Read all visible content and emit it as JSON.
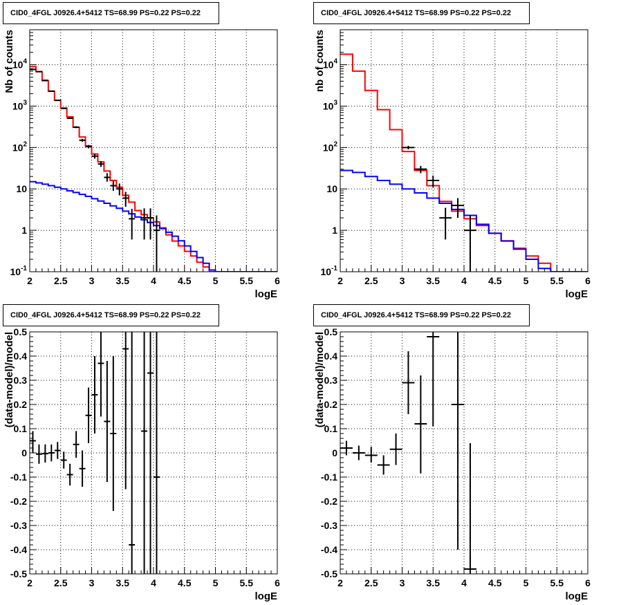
{
  "chart_data": [
    {
      "type": "line",
      "title": "CID0_4FGL J0926.4+5412 TS=68.99 PS=0.22 PS=0.22",
      "xlabel": "logE",
      "ylabel": "Nb of counts",
      "xlim": [
        2,
        6
      ],
      "ylim": [
        0.1,
        70000
      ],
      "yscale": "log",
      "grid": true,
      "xticks": [
        "2",
        "2.5",
        "3",
        "3.5",
        "4",
        "4.5",
        "5",
        "5.5",
        "6"
      ],
      "yticks": [
        "10^-1",
        "1",
        "10",
        "10^2",
        "10^3",
        "10^4"
      ],
      "bin_edges": [
        2,
        2.1,
        2.2,
        2.3,
        2.4,
        2.5,
        2.6,
        2.7,
        2.8,
        2.9,
        3,
        3.1,
        3.2,
        3.3,
        3.4,
        3.5,
        3.6,
        3.7,
        3.8,
        3.9,
        4,
        4.1,
        4.2,
        4.3,
        4.4,
        4.5,
        4.6,
        4.7,
        4.8,
        4.9,
        5,
        5.1,
        5.2,
        5.3,
        5.4,
        5.5,
        5.6,
        5.7,
        5.8,
        5.9,
        6
      ],
      "series": [
        {
          "color": "#ff0000",
          "style": "step",
          "values": [
            9000,
            6800,
            4100,
            2300,
            1380,
            900,
            550,
            310,
            180,
            110,
            70,
            45,
            27,
            16,
            11,
            7,
            4.8,
            3,
            2.4,
            2,
            1.6,
            1.15,
            0.78,
            0.55,
            0.42,
            0.31,
            0.24,
            0.17,
            0.13,
            0.1,
            0.08,
            0.07,
            0.06,
            0.06,
            0.06,
            0.06,
            0.06,
            0.06,
            0.06,
            0.06
          ]
        },
        {
          "color": "#0000ff",
          "style": "step",
          "values": [
            15,
            14,
            13,
            12,
            11,
            10,
            9,
            8.2,
            7.4,
            6.6,
            5.8,
            5.1,
            4.5,
            3.9,
            3.4,
            2.9,
            2.5,
            2.1,
            1.8,
            1.55,
            1.3,
            1.1,
            0.9,
            0.72,
            0.56,
            0.42,
            0.31,
            0.22,
            0.16,
            0.11,
            0.1,
            0.1,
            0.1,
            0.1,
            0.1,
            0.1,
            0.1,
            0.1,
            0.1,
            0.1
          ]
        },
        {
          "color": "#000000",
          "style": "errorbar",
          "points": [
            {
              "x": 2.05,
              "y": 7700,
              "lo": 7600,
              "hi": 7800
            },
            {
              "x": 2.15,
              "y": 6800,
              "lo": 6700,
              "hi": 6900
            },
            {
              "x": 2.25,
              "y": 4200,
              "lo": 4130,
              "hi": 4270
            },
            {
              "x": 2.35,
              "y": 2300,
              "lo": 2250,
              "hi": 2350
            },
            {
              "x": 2.45,
              "y": 1380,
              "lo": 1340,
              "hi": 1420
            },
            {
              "x": 2.55,
              "y": 880,
              "lo": 850,
              "hi": 910
            },
            {
              "x": 2.65,
              "y": 510,
              "lo": 490,
              "hi": 530
            },
            {
              "x": 2.75,
              "y": 310,
              "lo": 293,
              "hi": 327
            },
            {
              "x": 2.85,
              "y": 150,
              "lo": 138,
              "hi": 162
            },
            {
              "x": 2.95,
              "y": 105,
              "lo": 95,
              "hi": 115
            },
            {
              "x": 3.05,
              "y": 62,
              "lo": 54,
              "hi": 70
            },
            {
              "x": 3.15,
              "y": 40,
              "lo": 34,
              "hi": 47
            },
            {
              "x": 3.25,
              "y": 19,
              "lo": 15,
              "hi": 24
            },
            {
              "x": 3.35,
              "y": 12,
              "lo": 9,
              "hi": 15.5
            },
            {
              "x": 3.45,
              "y": 10,
              "lo": 7,
              "hi": 13.5
            },
            {
              "x": 3.55,
              "y": 6,
              "lo": 3.7,
              "hi": 8.5
            },
            {
              "x": 3.65,
              "y": 1.9,
              "lo": 0.6,
              "hi": 3.3
            },
            {
              "x": 3.85,
              "y": 2,
              "lo": 0.6,
              "hi": 3.4
            },
            {
              "x": 3.95,
              "y": 2,
              "lo": 0.6,
              "hi": 3.4
            },
            {
              "x": 4.05,
              "y": 1,
              "lo": 0.1,
              "hi": 2.3
            }
          ]
        }
      ]
    },
    {
      "type": "line",
      "title": "CID0_4FGL J0926.4+5412 TS=68.99 PS=0.22 PS=0.22",
      "xlabel": "logE",
      "ylabel": "nb of counts",
      "xlim": [
        2,
        6
      ],
      "ylim": [
        0.1,
        70000
      ],
      "yscale": "log",
      "grid": true,
      "xticks": [
        "2",
        "2.5",
        "3",
        "3.5",
        "4",
        "4.5",
        "5",
        "5.5",
        "6"
      ],
      "yticks": [
        "10^-1",
        "1",
        "10",
        "10^2",
        "10^3",
        "10^4"
      ],
      "bin_edges": [
        2,
        2.2,
        2.4,
        2.6,
        2.8,
        3,
        3.2,
        3.4,
        3.6,
        3.8,
        4,
        4.2,
        4.4,
        4.6,
        4.8,
        5,
        5.2,
        5.4,
        5.6,
        5.8,
        6
      ],
      "series": [
        {
          "color": "#ff0000",
          "style": "step",
          "values": [
            18000,
            7000,
            2400,
            820,
            270,
            80,
            28,
            12,
            5,
            2.9,
            1.9,
            1.3,
            0.85,
            0.56,
            0.37,
            0.24,
            0.16,
            0.1,
            0.1,
            0.1
          ]
        },
        {
          "color": "#0000ff",
          "style": "step",
          "values": [
            28,
            25,
            20,
            16,
            13,
            10,
            8,
            6,
            4.5,
            3.2,
            2.3,
            1.4,
            0.85,
            0.55,
            0.35,
            0.2,
            0.12,
            0.1,
            0.1,
            0.1
          ]
        },
        {
          "color": "#000000",
          "style": "errorbar",
          "points": [
            {
              "x": 3.1,
              "y": 100,
              "lo": 90,
              "hi": 110
            },
            {
              "x": 3.3,
              "y": 30,
              "lo": 24,
              "hi": 36
            },
            {
              "x": 3.5,
              "y": 16,
              "lo": 11,
              "hi": 21
            },
            {
              "x": 3.7,
              "y": 2,
              "lo": 0.6,
              "hi": 3.5
            },
            {
              "x": 3.9,
              "y": 4,
              "lo": 2,
              "hi": 6
            },
            {
              "x": 4.1,
              "y": 1,
              "lo": 0.1,
              "hi": 2.3
            }
          ]
        }
      ]
    },
    {
      "type": "scatter",
      "title": "CID0_4FGL J0926.4+5412 TS=68.99 PS=0.22 PS=0.22",
      "xlabel": "logE",
      "ylabel": "(data-model)/model",
      "xlim": [
        2,
        6
      ],
      "ylim": [
        -0.5,
        0.5
      ],
      "grid": true,
      "xticks": [
        "2",
        "2.5",
        "3",
        "3.5",
        "4",
        "4.5",
        "5",
        "5.5",
        "6"
      ],
      "yticks": [
        "-0.5",
        "-0.4",
        "-0.3",
        "-0.2",
        "-0.1",
        "0",
        "0.1",
        "0.2",
        "0.3",
        "0.4",
        "0.5"
      ],
      "series": [
        {
          "color": "#000000",
          "style": "errorbar",
          "xerr": 0.05,
          "points": [
            {
              "x": 2.05,
              "y": 0.05,
              "lo": 0.0,
              "hi": 0.09
            },
            {
              "x": 2.15,
              "y": -0.005,
              "lo": -0.045,
              "hi": 0.035
            },
            {
              "x": 2.25,
              "y": -0.003,
              "lo": -0.04,
              "hi": 0.035
            },
            {
              "x": 2.35,
              "y": 0.0,
              "lo": -0.035,
              "hi": 0.035
            },
            {
              "x": 2.45,
              "y": 0.01,
              "lo": -0.025,
              "hi": 0.045
            },
            {
              "x": 2.55,
              "y": -0.03,
              "lo": -0.065,
              "hi": 0.005
            },
            {
              "x": 2.65,
              "y": -0.09,
              "lo": -0.135,
              "hi": -0.045
            },
            {
              "x": 2.75,
              "y": 0.035,
              "lo": -0.02,
              "hi": 0.09
            },
            {
              "x": 2.85,
              "y": -0.065,
              "lo": -0.14,
              "hi": 0.01
            },
            {
              "x": 2.95,
              "y": 0.155,
              "lo": 0.04,
              "hi": 0.27
            },
            {
              "x": 3.05,
              "y": 0.24,
              "lo": 0.08,
              "hi": 0.4
            },
            {
              "x": 3.15,
              "y": 0.37,
              "lo": 0.15,
              "hi": 0.5
            },
            {
              "x": 3.25,
              "y": 0.13,
              "lo": -0.12,
              "hi": 0.38
            },
            {
              "x": 3.35,
              "y": 0.08,
              "lo": -0.24,
              "hi": 0.4
            },
            {
              "x": 3.55,
              "y": 0.43,
              "lo": -0.15,
              "hi": 0.5
            },
            {
              "x": 3.65,
              "y": -0.38,
              "lo": -0.5,
              "hi": 0.5
            },
            {
              "x": 3.85,
              "y": 0.09,
              "lo": -0.5,
              "hi": 0.5
            },
            {
              "x": 3.95,
              "y": 0.33,
              "lo": -0.5,
              "hi": 0.5
            },
            {
              "x": 4.05,
              "y": -0.1,
              "lo": -0.5,
              "hi": 0.5
            }
          ]
        }
      ]
    },
    {
      "type": "scatter",
      "title": "CID0_4FGL J0926.4+5412 TS=68.99 PS=0.22 PS=0.22",
      "xlabel": "logE",
      "ylabel": "(data-model)/model",
      "xlim": [
        2,
        6
      ],
      "ylim": [
        -0.5,
        0.5
      ],
      "grid": true,
      "xticks": [
        "2",
        "2.5",
        "3",
        "3.5",
        "4",
        "4.5",
        "5",
        "5.5",
        "6"
      ],
      "yticks": [
        "-0.5",
        "-0.4",
        "-0.3",
        "-0.2",
        "-0.1",
        "0",
        "0.1",
        "0.2",
        "0.3",
        "0.4",
        "0.5"
      ],
      "series": [
        {
          "color": "#000000",
          "style": "errorbar",
          "xerr": 0.1,
          "points": [
            {
              "x": 2.1,
              "y": 0.02,
              "lo": -0.01,
              "hi": 0.05
            },
            {
              "x": 2.3,
              "y": 0.0,
              "lo": -0.03,
              "hi": 0.03
            },
            {
              "x": 2.5,
              "y": -0.01,
              "lo": -0.04,
              "hi": 0.025
            },
            {
              "x": 2.7,
              "y": -0.05,
              "lo": -0.09,
              "hi": -0.01
            },
            {
              "x": 2.9,
              "y": 0.015,
              "lo": -0.05,
              "hi": 0.08
            },
            {
              "x": 3.1,
              "y": 0.29,
              "lo": 0.16,
              "hi": 0.42
            },
            {
              "x": 3.3,
              "y": 0.12,
              "lo": -0.085,
              "hi": 0.32
            },
            {
              "x": 3.5,
              "y": 0.48,
              "lo": 0.11,
              "hi": 0.5
            },
            {
              "x": 3.9,
              "y": 0.2,
              "lo": -0.4,
              "hi": 0.5
            },
            {
              "x": 4.1,
              "y": -0.48,
              "lo": -0.5,
              "hi": 0.04
            }
          ]
        }
      ]
    }
  ]
}
